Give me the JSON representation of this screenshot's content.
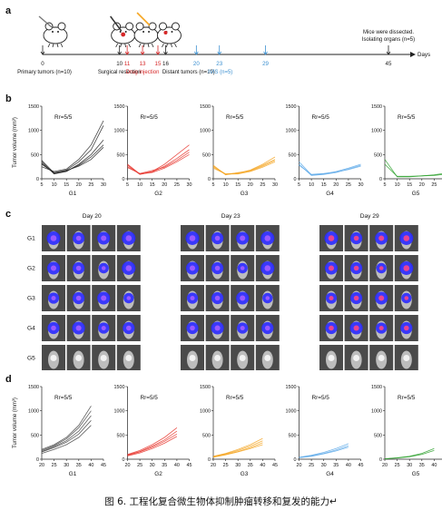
{
  "figure": {
    "caption": "图 6. 工程化复合微生物体抑制肿瘤转移和复发的能力↵",
    "panels": [
      "a",
      "b",
      "c",
      "d"
    ]
  },
  "timeline": {
    "days_label": "Days",
    "ticks": [
      {
        "day": "0",
        "color": "#222222"
      },
      {
        "day": "10",
        "color": "#222222"
      },
      {
        "day": "11",
        "color": "#d62728"
      },
      {
        "day": "13",
        "color": "#d62728"
      },
      {
        "day": "15",
        "color": "#d62728"
      },
      {
        "day": "16",
        "color": "#222222"
      },
      {
        "day": "20",
        "color": "#3a8fd0"
      },
      {
        "day": "23",
        "color": "#3a8fd0"
      },
      {
        "day": "29",
        "color": "#3a8fd0"
      },
      {
        "day": "45",
        "color": "#222222"
      }
    ],
    "labels": {
      "primary": "Primary tumors (n=10)",
      "surgical": "Surgical resection",
      "drug": "Drug  injection",
      "distant": "Distant tumors (n=10)",
      "ivis": "IVIS (n=5)",
      "dissect_line1": "Mice were dissected.",
      "dissect_line2": "Isolating organs (n=5)"
    }
  },
  "growth_b": {
    "ylabel": "Tumor volume (mm³)",
    "unit": "(d)",
    "annotation": "Rr=5/5",
    "colors": [
      "#222222",
      "#e8362e",
      "#f5a623",
      "#5da9e9",
      "#2ca02c"
    ],
    "chart_data": [
      {
        "type": "line",
        "name": "G1",
        "x": [
          5,
          10,
          15,
          20,
          25,
          30
        ],
        "ylim": [
          0,
          1500
        ],
        "xlim": [
          5,
          30
        ],
        "series": [
          {
            "values": [
              250,
              150,
              200,
              400,
              700,
              1200
            ]
          },
          {
            "values": [
              300,
              130,
              180,
              350,
              600,
              1100
            ]
          },
          {
            "values": [
              350,
              100,
              150,
              300,
              500,
              800
            ]
          },
          {
            "values": [
              380,
              120,
              160,
              280,
              450,
              700
            ]
          },
          {
            "values": [
              320,
              110,
              170,
              260,
              400,
              650
            ]
          }
        ]
      },
      {
        "type": "line",
        "name": "G2",
        "x": [
          5,
          10,
          15,
          20,
          25,
          30
        ],
        "ylim": [
          0,
          1500
        ],
        "xlim": [
          5,
          30
        ],
        "series": [
          {
            "values": [
              250,
              100,
              150,
              300,
              500,
              700
            ]
          },
          {
            "values": [
              280,
              90,
              140,
              260,
              420,
              600
            ]
          },
          {
            "values": [
              230,
              110,
              170,
              240,
              380,
              550
            ]
          },
          {
            "values": [
              300,
              100,
              130,
              220,
              350,
              500
            ]
          }
        ]
      },
      {
        "type": "line",
        "name": "G3",
        "x": [
          5,
          10,
          15,
          20,
          25,
          30
        ],
        "ylim": [
          0,
          1500
        ],
        "xlim": [
          5,
          30
        ],
        "series": [
          {
            "values": [
              260,
              100,
              120,
              180,
              300,
              450
            ]
          },
          {
            "values": [
              240,
              90,
              110,
              170,
              280,
              400
            ]
          },
          {
            "values": [
              280,
              80,
              130,
              160,
              260,
              380
            ]
          },
          {
            "values": [
              220,
              100,
              100,
              150,
              240,
              350
            ]
          }
        ]
      },
      {
        "type": "line",
        "name": "G4",
        "x": [
          5,
          10,
          15,
          20,
          25,
          30
        ],
        "ylim": [
          0,
          1500
        ],
        "xlim": [
          5,
          30
        ],
        "series": [
          {
            "values": [
              350,
              80,
              100,
              150,
              220,
              300
            ]
          },
          {
            "values": [
              300,
              70,
              90,
              130,
              200,
              280
            ]
          },
          {
            "values": [
              280,
              90,
              110,
              140,
              190,
              260
            ]
          }
        ]
      },
      {
        "type": "line",
        "name": "G5",
        "x": [
          5,
          10,
          15,
          20,
          25,
          30
        ],
        "ylim": [
          0,
          1500
        ],
        "xlim": [
          5,
          30
        ],
        "series": [
          {
            "values": [
              400,
              40,
              40,
              60,
              80,
              120
            ]
          },
          {
            "values": [
              300,
              50,
              50,
              60,
              70,
              100
            ]
          }
        ]
      }
    ]
  },
  "imaging_c": {
    "days": [
      "Day 20",
      "Day 23",
      "Day 29"
    ],
    "rows": [
      "G1",
      "G2",
      "G3",
      "G4",
      "G5"
    ]
  },
  "growth_d": {
    "ylabel": "Tumor volume (mm³)",
    "unit": "(d)",
    "annotation": "Rr=5/5",
    "colors": [
      "#444444",
      "#e8362e",
      "#f5a623",
      "#5da9e9",
      "#2ca02c"
    ],
    "chart_data": [
      {
        "type": "line",
        "name": "G1",
        "x": [
          20,
          25,
          30,
          35,
          40
        ],
        "ylim": [
          0,
          1500
        ],
        "xlim": [
          20,
          45
        ],
        "series": [
          {
            "values": [
              200,
              300,
              450,
              700,
              1100
            ]
          },
          {
            "values": [
              180,
              280,
              420,
              650,
              1000
            ]
          },
          {
            "values": [
              160,
              260,
              380,
              580,
              900
            ]
          },
          {
            "values": [
              150,
              240,
              350,
              520,
              800
            ]
          },
          {
            "values": [
              120,
              200,
              300,
              450,
              700
            ]
          }
        ]
      },
      {
        "type": "line",
        "name": "G2",
        "x": [
          20,
          25,
          30,
          35,
          40
        ],
        "ylim": [
          0,
          1500
        ],
        "xlim": [
          20,
          45
        ],
        "series": [
          {
            "values": [
              100,
              180,
              300,
              450,
              650
            ]
          },
          {
            "values": [
              90,
              160,
              270,
              400,
              580
            ]
          },
          {
            "values": [
              80,
              150,
              250,
              370,
              520
            ]
          },
          {
            "values": [
              70,
              130,
              220,
              330,
              470
            ]
          }
        ]
      },
      {
        "type": "line",
        "name": "G3",
        "x": [
          20,
          25,
          30,
          35,
          40
        ],
        "ylim": [
          0,
          1500
        ],
        "xlim": [
          20,
          45
        ],
        "series": [
          {
            "values": [
              60,
              120,
              200,
              300,
              430
            ]
          },
          {
            "values": [
              50,
              110,
              180,
              270,
              380
            ]
          },
          {
            "values": [
              45,
              100,
              160,
              240,
              340
            ]
          },
          {
            "values": [
              40,
              90,
              150,
              220,
              300
            ]
          }
        ]
      },
      {
        "type": "line",
        "name": "G4",
        "x": [
          20,
          25,
          30,
          35,
          40
        ],
        "ylim": [
          0,
          1500
        ],
        "xlim": [
          20,
          45
        ],
        "series": [
          {
            "values": [
              40,
              80,
              140,
              220,
              320
            ]
          },
          {
            "values": [
              35,
              70,
              120,
              190,
              280
            ]
          },
          {
            "values": [
              30,
              60,
              110,
              170,
              250
            ]
          }
        ]
      },
      {
        "type": "line",
        "name": "G5",
        "x": [
          20,
          25,
          30,
          35,
          40
        ],
        "ylim": [
          0,
          1500
        ],
        "xlim": [
          20,
          45
        ],
        "series": [
          {
            "values": [
              10,
              30,
              60,
              120,
              220
            ]
          },
          {
            "values": [
              8,
              25,
              50,
              100,
              180
            ]
          }
        ]
      }
    ]
  }
}
